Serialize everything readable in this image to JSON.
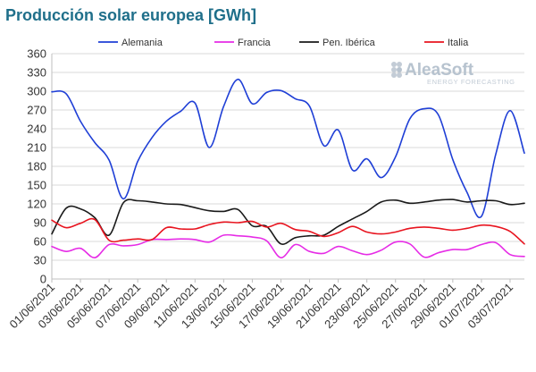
{
  "chart_data": {
    "type": "line",
    "title": "Producción solar europea [GWh]",
    "xlabel": "",
    "ylabel": "",
    "ylim": [
      0,
      360
    ],
    "yticks": [
      0,
      30,
      60,
      90,
      120,
      150,
      180,
      210,
      240,
      270,
      300,
      330,
      360
    ],
    "grid": true,
    "legend_position": "top",
    "x": [
      "01/06/2021",
      "02/06/2021",
      "03/06/2021",
      "04/06/2021",
      "05/06/2021",
      "06/06/2021",
      "07/06/2021",
      "08/06/2021",
      "09/06/2021",
      "10/06/2021",
      "11/06/2021",
      "12/06/2021",
      "13/06/2021",
      "14/06/2021",
      "15/06/2021",
      "16/06/2021",
      "17/06/2021",
      "18/06/2021",
      "19/06/2021",
      "20/06/2021",
      "21/06/2021",
      "22/06/2021",
      "23/06/2021",
      "24/06/2021",
      "25/06/2021",
      "26/06/2021",
      "27/06/2021",
      "28/06/2021",
      "29/06/2021",
      "30/06/2021",
      "01/07/2021",
      "02/07/2021",
      "03/07/2021",
      "04/07/2021"
    ],
    "xtick_labels": [
      "01/06/2021",
      "03/06/2021",
      "05/06/2021",
      "07/06/2021",
      "09/06/2021",
      "11/06/2021",
      "13/06/2021",
      "15/06/2021",
      "17/06/2021",
      "19/06/2021",
      "21/06/2021",
      "23/06/2021",
      "25/06/2021",
      "27/06/2021",
      "29/06/2021",
      "01/07/2021",
      "03/07/2021"
    ],
    "series": [
      {
        "name": "Alemania",
        "color": "#1f3fd6",
        "values": [
          299,
          296,
          252,
          218,
          190,
          128,
          188,
          226,
          252,
          268,
          281,
          210,
          276,
          319,
          280,
          298,
          301,
          288,
          276,
          213,
          238,
          174,
          192,
          162,
          195,
          256,
          272,
          262,
          191,
          138,
          100,
          199,
          269,
          201
        ]
      },
      {
        "name": "Francia",
        "color": "#e62ce6",
        "values": [
          52,
          44,
          49,
          34,
          55,
          53,
          55,
          63,
          63,
          64,
          63,
          59,
          70,
          69,
          67,
          61,
          34,
          55,
          44,
          41,
          52,
          45,
          39,
          46,
          59,
          56,
          35,
          42,
          47,
          47,
          55,
          58,
          39,
          36
        ]
      },
      {
        "name": "Pen. Ibérica",
        "color": "#1a1a1a",
        "values": [
          72,
          113,
          112,
          98,
          70,
          122,
          125,
          123,
          120,
          119,
          114,
          109,
          108,
          111,
          85,
          84,
          56,
          66,
          69,
          70,
          84,
          96,
          108,
          123,
          126,
          121,
          123,
          126,
          127,
          123,
          125,
          125,
          119,
          121
        ]
      },
      {
        "name": "Italia",
        "color": "#e8141f",
        "values": [
          94,
          82,
          89,
          95,
          62,
          62,
          64,
          63,
          82,
          80,
          80,
          87,
          91,
          90,
          92,
          83,
          89,
          79,
          76,
          68,
          74,
          84,
          75,
          72,
          75,
          81,
          83,
          81,
          78,
          81,
          86,
          84,
          76,
          56
        ]
      }
    ]
  },
  "watermark": {
    "brand": "AleaSoft",
    "tagline": "ENERGY FORECASTING"
  }
}
